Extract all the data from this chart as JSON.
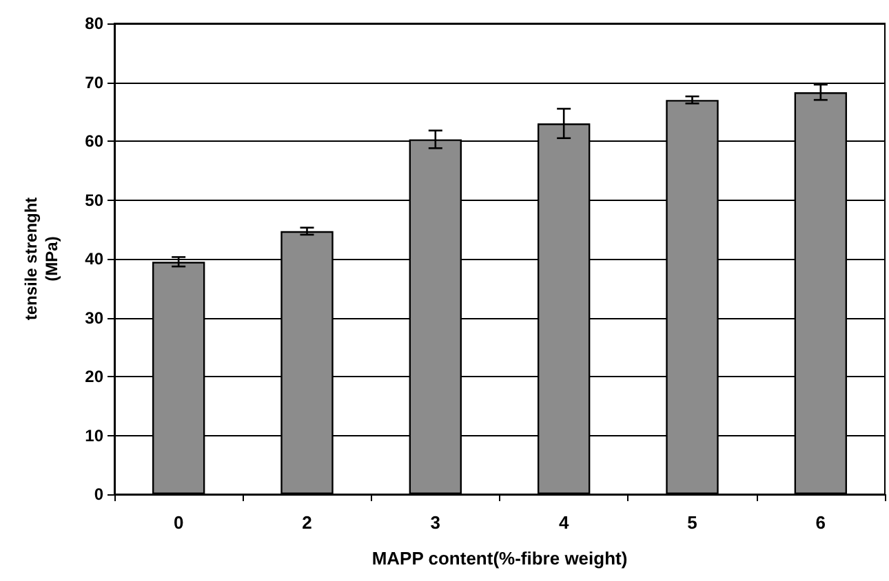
{
  "chart_data": {
    "type": "bar",
    "xlabel": "MAPP content(%-fibre weight)",
    "ylabel": "tensile strenght\n(MPa)",
    "categories": [
      "0",
      "2",
      "3",
      "4",
      "5",
      "6"
    ],
    "values": [
      39.5,
      44.7,
      60.3,
      63,
      67,
      68.3
    ],
    "errors": [
      0.8,
      0.6,
      1.5,
      2.5,
      0.6,
      1.3
    ],
    "color": "#8c8c8c",
    "ylim": [
      0,
      80
    ],
    "yticks": [
      0,
      10,
      20,
      30,
      40,
      50,
      60,
      70,
      80
    ],
    "grid": "y"
  }
}
